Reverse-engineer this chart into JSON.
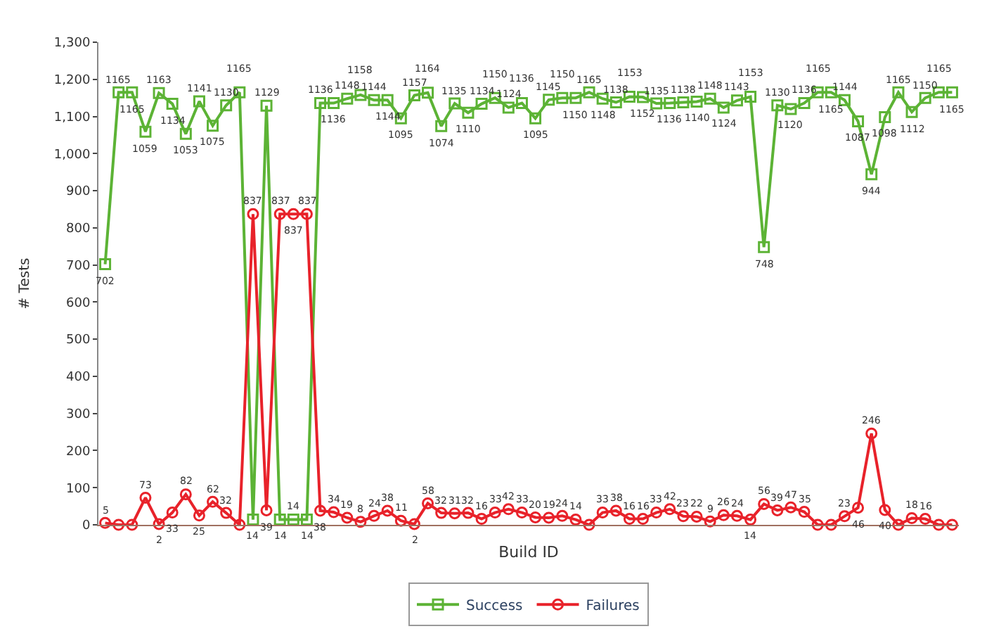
{
  "chart_data": {
    "type": "line",
    "xlabel": "Build ID",
    "ylabel": "# Tests",
    "categories": [
      null,
      null,
      null,
      null,
      null,
      null,
      null,
      null,
      null,
      null,
      null,
      null,
      null,
      null,
      null,
      null,
      null,
      null,
      null,
      null,
      null,
      null,
      null,
      null,
      null,
      null,
      null,
      null,
      null,
      null,
      null,
      null,
      null,
      null,
      null,
      null,
      null,
      null,
      null,
      null,
      null,
      null,
      null,
      null,
      null,
      null,
      null,
      null,
      null,
      null,
      null,
      null,
      null,
      null,
      null,
      null,
      null,
      null,
      null,
      null,
      null,
      null,
      null,
      null
    ],
    "ylim": [
      0,
      1300
    ],
    "yticks": [
      0,
      100,
      200,
      300,
      400,
      500,
      600,
      700,
      800,
      900,
      {
        "value": 1000,
        "label": "1,000"
      },
      {
        "value": 1100,
        "label": "1,100"
      },
      {
        "value": 1200,
        "label": "1,200"
      },
      {
        "value": 1300,
        "label": "1,300"
      }
    ],
    "tick_labels": "y",
    "grid": false,
    "legend": "bottom",
    "line_style": "solid",
    "series": [
      {
        "name": "Success",
        "color": "#5cb335",
        "marker": "square",
        "values": [
          702,
          1165,
          1165,
          1059,
          1163,
          1134,
          1053,
          1141,
          1075,
          1130,
          1165,
          14,
          1129,
          14,
          14,
          14,
          1136,
          1136,
          1148,
          1158,
          1144,
          1144,
          1095,
          1157,
          1164,
          1074,
          1135,
          1110,
          1134,
          1150,
          1124,
          1136,
          1095,
          1145,
          1150,
          1150,
          1165,
          1148,
          1138,
          1153,
          1152,
          1135,
          1136,
          1138,
          1140,
          1148,
          1124,
          1143,
          1153,
          748,
          1130,
          1120,
          1136,
          1165,
          1165,
          1144,
          1087,
          944,
          1098,
          1165,
          1112,
          1150,
          1165,
          1165
        ],
        "value_labels": [
          "702",
          "1165",
          "1165",
          "1059",
          "1163",
          "1134",
          "1053",
          "1141",
          "1075",
          "1130",
          "1165",
          "14",
          "1129",
          "14",
          "14",
          "14",
          "1136",
          "1136",
          "1148",
          "1158",
          "1144",
          "1144",
          "1095",
          "1157",
          "1164",
          "1074",
          "1135",
          "1110",
          "1134",
          "1150",
          "1124",
          "1136",
          "1095",
          "1145",
          "1150",
          "1150",
          "1165",
          "1148",
          "1138",
          "1153",
          "1152",
          "1135",
          "1136",
          "1138",
          "1140",
          "1148",
          "1124",
          "1143",
          "1153",
          "748",
          "1130",
          "1120",
          "1136",
          "1165",
          "1165",
          "1144",
          "1087",
          "944",
          "1098",
          "1165",
          "1112",
          "1150",
          "1165",
          "1165"
        ]
      },
      {
        "name": "Failures",
        "color": "#e8222a",
        "marker": "circle",
        "values": [
          5,
          0,
          0,
          73,
          2,
          33,
          82,
          25,
          62,
          32,
          0,
          837,
          39,
          837,
          837,
          837,
          38,
          34,
          19,
          8,
          24,
          38,
          11,
          2,
          58,
          32,
          31,
          32,
          16,
          33,
          42,
          33,
          20,
          19,
          24,
          14,
          0,
          33,
          38,
          16,
          16,
          33,
          42,
          23,
          22,
          9,
          26,
          24,
          14,
          56,
          39,
          47,
          35,
          0,
          0,
          23,
          46,
          246,
          40,
          0,
          18,
          16,
          0,
          0
        ],
        "value_labels": [
          "5",
          null,
          null,
          "73",
          "2",
          "33",
          "82",
          "25",
          "62",
          "32",
          null,
          "837",
          "39",
          "837",
          "837",
          "837",
          "38",
          "34",
          "19",
          "8",
          "24",
          "38",
          "11",
          "2",
          "58",
          "32",
          "31",
          "32",
          "16",
          "33",
          "42",
          "33",
          "20",
          "19",
          "24",
          "14",
          null,
          "33",
          "38",
          "16",
          "16",
          "33",
          "42",
          "23",
          "22",
          "9",
          "26",
          "24",
          "14",
          "56",
          "39",
          "47",
          "35",
          null,
          null,
          "23",
          "46",
          "246",
          "40",
          null,
          "18",
          "16",
          null,
          null
        ]
      }
    ]
  }
}
